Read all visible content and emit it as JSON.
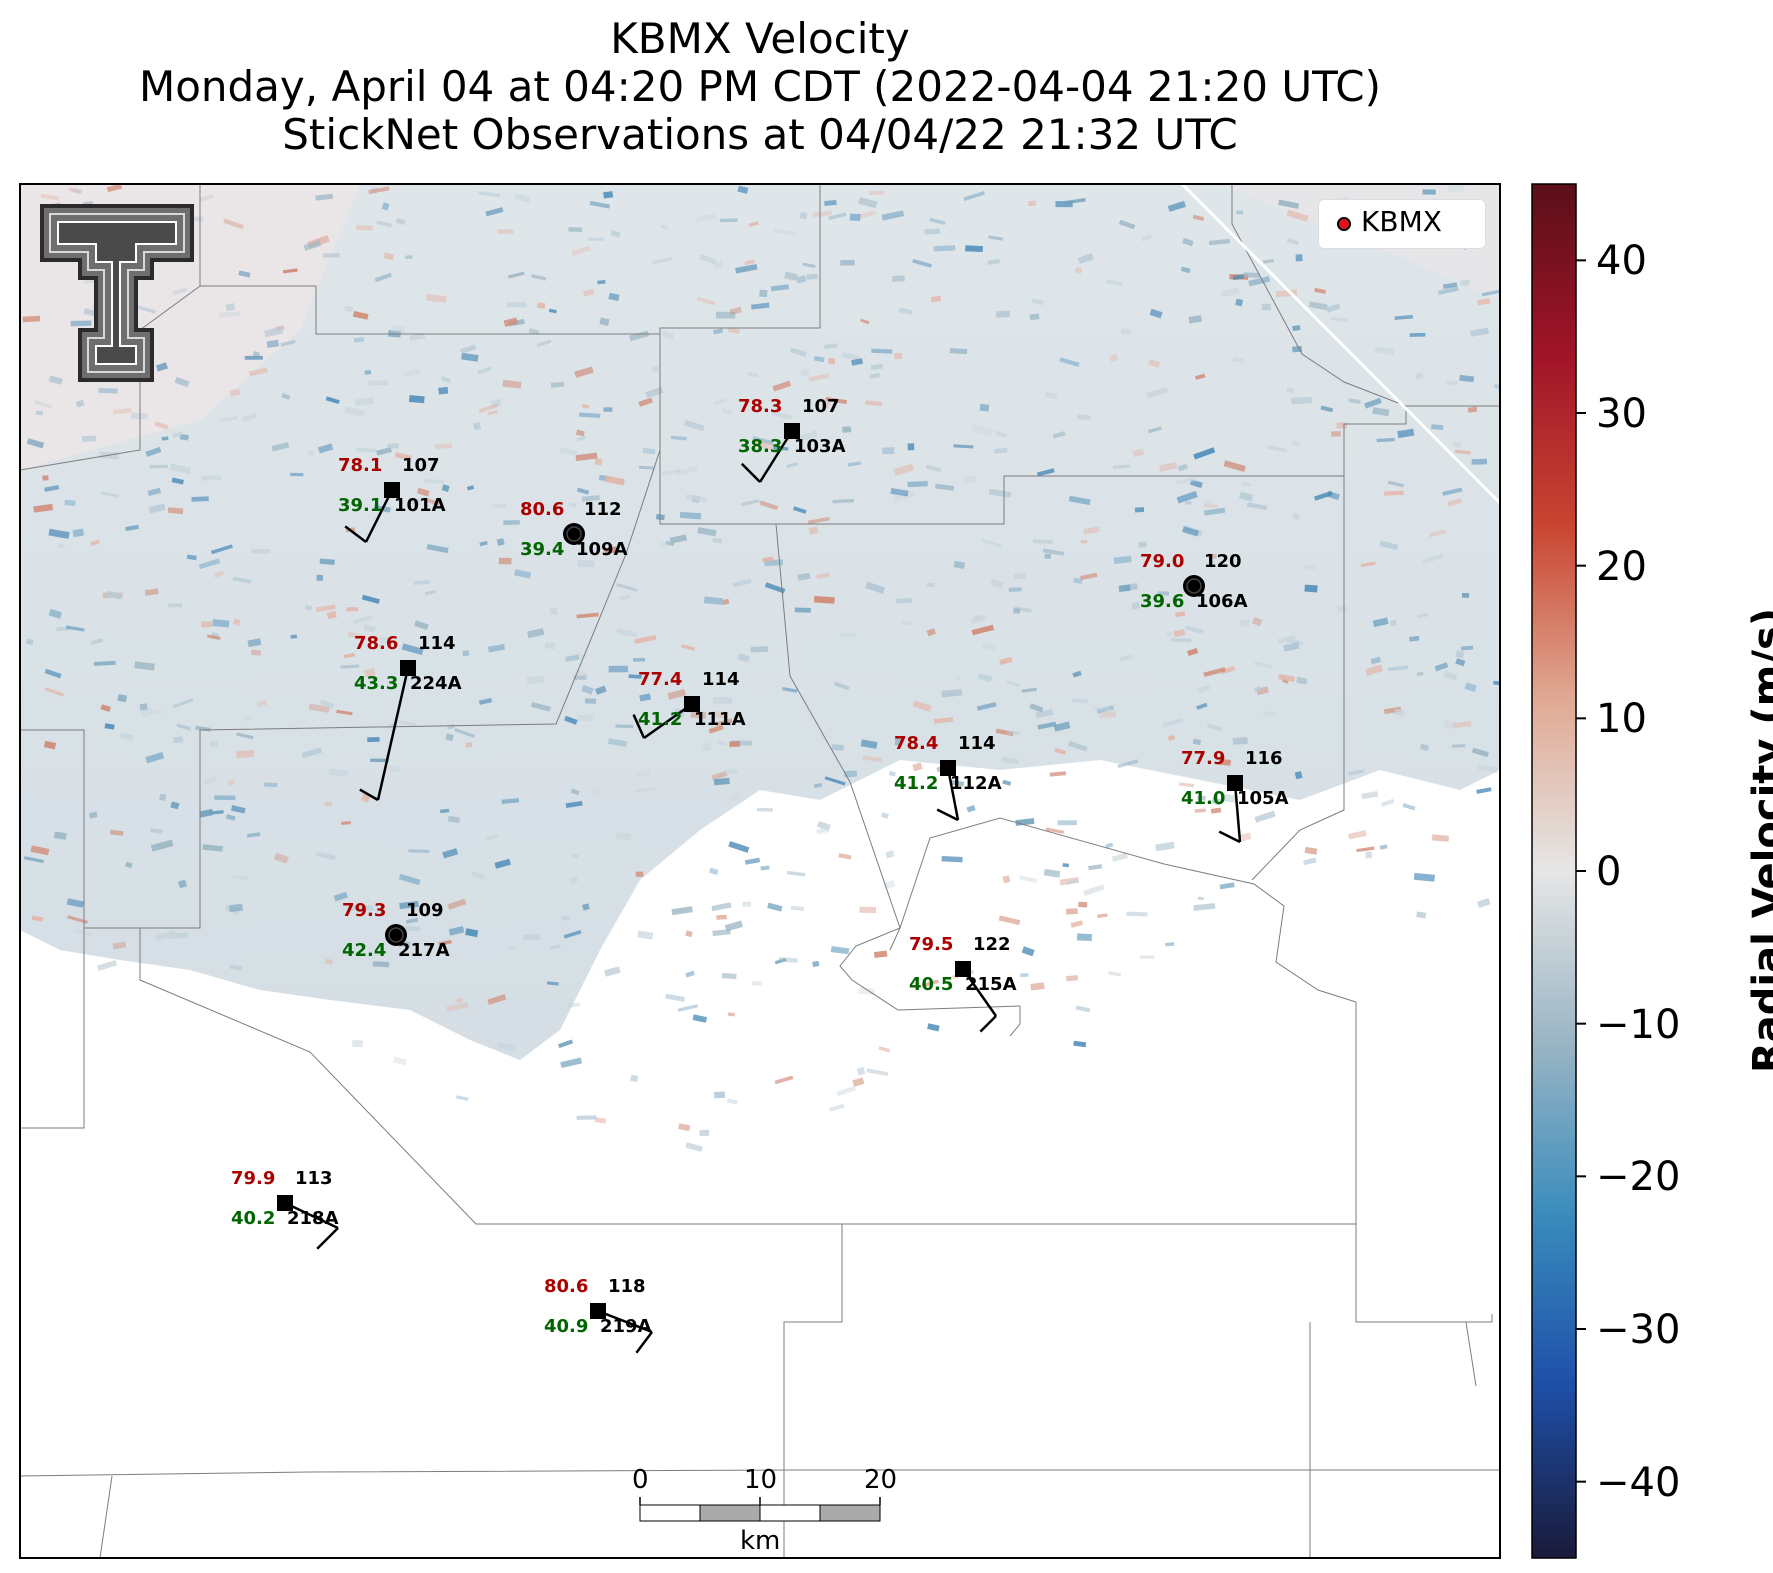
{
  "header": {
    "title_line1": "KBMX Velocity",
    "title_line2": "Monday, April 04 at 04:20 PM CDT (2022-04-04 21:20 UTC)",
    "title_line3": "StickNet Observations at 04/04/22 21:32 UTC"
  },
  "legend": {
    "label": "KBMX",
    "marker_color": "#e8101a"
  },
  "colorbar": {
    "label": "Radial Velocity (m/s)",
    "range": [
      -45,
      45
    ],
    "ticks": [
      "40",
      "30",
      "20",
      "10",
      "0",
      "−10",
      "−20",
      "−30",
      "−40"
    ],
    "colors": [
      "#5a0f19",
      "#a11428",
      "#c94632",
      "#e0a993",
      "#e6e6e6",
      "#9ab5c4",
      "#3a8cbd",
      "#1e4fa8",
      "#1a1a3a"
    ]
  },
  "scalebar": {
    "ticks": [
      "0",
      "10",
      "20"
    ],
    "unit": "km"
  },
  "logo": {
    "name": "Texas Tech Double T"
  },
  "stations": [
    {
      "id": "101A",
      "temp": "78.1",
      "dewpoint": "39.1",
      "dir": "107",
      "marker": "square"
    },
    {
      "id": "109A",
      "temp": "80.6",
      "dewpoint": "39.4",
      "dir": "112",
      "marker": "calm"
    },
    {
      "id": "103A",
      "temp": "78.3",
      "dewpoint": "38.3",
      "dir": "107",
      "marker": "square"
    },
    {
      "id": "106A",
      "temp": "79.0",
      "dewpoint": "39.6",
      "dir": "120",
      "marker": "calm"
    },
    {
      "id": "111A",
      "temp": "77.4",
      "dewpoint": "41.2",
      "dir": "114",
      "marker": "square"
    },
    {
      "id": "224A",
      "temp": "78.6",
      "dewpoint": "43.3",
      "dir": "114",
      "marker": "square"
    },
    {
      "id": "112A",
      "temp": "78.4",
      "dewpoint": "41.2",
      "dir": "114",
      "marker": "square"
    },
    {
      "id": "105A",
      "temp": "77.9",
      "dewpoint": "41.0",
      "dir": "116",
      "marker": "square"
    },
    {
      "id": "217A",
      "temp": "79.3",
      "dewpoint": "42.4",
      "dir": "109",
      "marker": "calm"
    },
    {
      "id": "215A",
      "temp": "79.5",
      "dewpoint": "40.5",
      "dir": "122",
      "marker": "square"
    },
    {
      "id": "218A",
      "temp": "79.9",
      "dewpoint": "40.2",
      "dir": "113",
      "marker": "square"
    },
    {
      "id": "219A",
      "temp": "80.6",
      "dewpoint": "40.9",
      "dir": "118",
      "marker": "square"
    }
  ]
}
